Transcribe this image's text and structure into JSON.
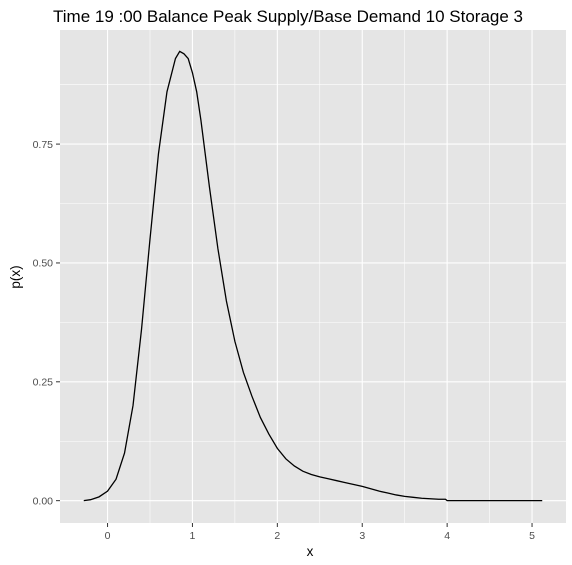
{
  "chart_data": {
    "type": "line",
    "title": "Time  19 :00  Balance   Peak Supply/Base Demand  10 Storage 3",
    "xlabel": "x",
    "ylabel": "p(x)",
    "xlim": [
      -0.56,
      5.4
    ],
    "ylim": [
      -0.047,
      0.99
    ],
    "x_ticks": [
      {
        "value": 0,
        "label": "0"
      },
      {
        "value": 1,
        "label": "1"
      },
      {
        "value": 2,
        "label": "2"
      },
      {
        "value": 3,
        "label": "3"
      },
      {
        "value": 4,
        "label": "4"
      },
      {
        "value": 5,
        "label": "5"
      }
    ],
    "y_ticks": [
      {
        "value": 0,
        "label": "0.00"
      },
      {
        "value": 0.25,
        "label": "0.25"
      },
      {
        "value": 0.5,
        "label": "0.50"
      },
      {
        "value": 0.75,
        "label": "0.75"
      }
    ],
    "grid": true,
    "colors": {
      "panel": "#e5e5e5",
      "grid": "#ffffff",
      "line": "#000000"
    },
    "series": [
      {
        "x": [
          -0.28,
          -0.2,
          -0.1,
          0.0,
          0.1,
          0.2,
          0.3,
          0.4,
          0.5,
          0.6,
          0.7,
          0.8,
          0.85,
          0.9,
          0.95,
          1.0,
          1.05,
          1.1,
          1.2,
          1.3,
          1.4,
          1.5,
          1.6,
          1.7,
          1.8,
          1.9,
          2.0,
          2.1,
          2.2,
          2.3,
          2.4,
          2.5,
          2.6,
          2.7,
          2.8,
          2.9,
          3.0,
          3.1,
          3.2,
          3.3,
          3.4,
          3.5,
          3.6,
          3.7,
          3.8,
          3.9,
          3.98,
          4.0,
          4.2,
          4.5,
          4.8,
          5.12
        ],
        "y": [
          0.0,
          0.002,
          0.008,
          0.02,
          0.045,
          0.1,
          0.2,
          0.36,
          0.55,
          0.73,
          0.86,
          0.93,
          0.945,
          0.94,
          0.93,
          0.9,
          0.86,
          0.8,
          0.66,
          0.53,
          0.42,
          0.335,
          0.27,
          0.22,
          0.175,
          0.14,
          0.11,
          0.088,
          0.073,
          0.062,
          0.055,
          0.05,
          0.046,
          0.042,
          0.038,
          0.034,
          0.03,
          0.025,
          0.02,
          0.016,
          0.012,
          0.009,
          0.007,
          0.005,
          0.004,
          0.003,
          0.003,
          0.0,
          0.0,
          0.0,
          0.0,
          0.0
        ]
      }
    ]
  }
}
